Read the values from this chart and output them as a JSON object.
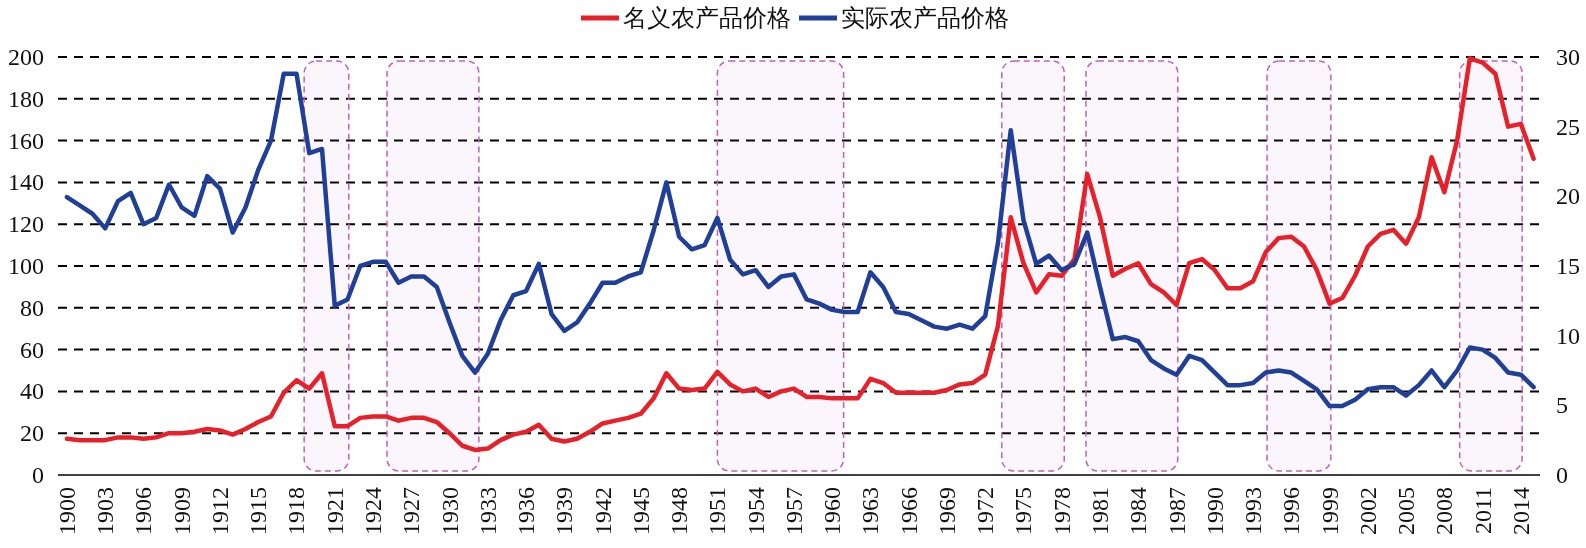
{
  "chart_data": {
    "type": "line",
    "legend": "top",
    "grid": "y",
    "x": [
      1900,
      1901,
      1902,
      1903,
      1904,
      1905,
      1906,
      1907,
      1908,
      1909,
      1910,
      1911,
      1912,
      1913,
      1914,
      1915,
      1916,
      1917,
      1918,
      1919,
      1920,
      1921,
      1922,
      1923,
      1924,
      1925,
      1926,
      1927,
      1928,
      1929,
      1930,
      1931,
      1932,
      1933,
      1934,
      1935,
      1936,
      1937,
      1938,
      1939,
      1940,
      1941,
      1942,
      1943,
      1944,
      1945,
      1946,
      1947,
      1948,
      1949,
      1950,
      1951,
      1952,
      1953,
      1954,
      1955,
      1956,
      1957,
      1958,
      1959,
      1960,
      1961,
      1962,
      1963,
      1964,
      1965,
      1966,
      1967,
      1968,
      1969,
      1970,
      1971,
      1972,
      1973,
      1974,
      1975,
      1976,
      1977,
      1978,
      1979,
      1980,
      1981,
      1982,
      1983,
      1984,
      1985,
      1986,
      1987,
      1988,
      1989,
      1990,
      1991,
      1992,
      1993,
      1994,
      1995,
      1996,
      1997,
      1998,
      1999,
      2000,
      2001,
      2002,
      2003,
      2004,
      2005,
      2006,
      2007,
      2008,
      2009,
      2010,
      2011,
      2012,
      2013,
      2014,
      2015
    ],
    "series": [
      {
        "name": "名义农产品价格",
        "color": "#e8202a",
        "axis": "y2",
        "values": [
          2.6,
          2.5,
          2.5,
          2.5,
          2.7,
          2.7,
          2.6,
          2.7,
          3.0,
          3.0,
          3.1,
          3.3,
          3.2,
          2.9,
          3.3,
          3.8,
          4.2,
          5.9,
          6.8,
          6.2,
          7.3,
          3.5,
          3.5,
          4.1,
          4.2,
          4.2,
          3.9,
          4.1,
          4.1,
          3.8,
          3.0,
          2.1,
          1.8,
          1.9,
          2.5,
          2.9,
          3.1,
          3.6,
          2.6,
          2.4,
          2.6,
          3.1,
          3.7,
          3.9,
          4.1,
          4.4,
          5.5,
          7.3,
          6.2,
          6.1,
          6.2,
          7.4,
          6.5,
          6.0,
          6.2,
          5.6,
          6.0,
          6.2,
          5.6,
          5.6,
          5.5,
          5.5,
          5.5,
          6.9,
          6.6,
          5.9,
          5.9,
          5.9,
          5.9,
          6.1,
          6.5,
          6.6,
          7.2,
          10.7,
          18.5,
          15.2,
          13.1,
          14.4,
          14.3,
          15.5,
          21.6,
          18.5,
          14.3,
          14.8,
          15.2,
          13.7,
          13.1,
          12.2,
          15.2,
          15.5,
          14.7,
          13.4,
          13.4,
          13.9,
          16.0,
          17.0,
          17.1,
          16.4,
          14.7,
          12.3,
          12.7,
          14.3,
          16.4,
          17.3,
          17.6,
          16.6,
          18.5,
          22.8,
          20.3,
          24.0,
          29.9,
          29.6,
          28.8,
          25.0,
          25.2,
          22.7
        ]
      },
      {
        "name": "实际农产品价格",
        "color": "#1f3f99",
        "values": [
          133,
          129,
          125,
          118,
          131,
          135,
          120,
          123,
          139,
          128,
          124,
          143,
          137,
          116,
          128,
          146,
          160,
          192,
          192,
          154,
          156,
          81,
          84,
          100,
          102,
          102,
          92,
          95,
          95,
          90,
          73,
          57,
          49,
          58,
          74,
          86,
          88,
          101,
          77,
          69,
          73,
          82,
          92,
          92,
          95,
          97,
          117,
          140,
          114,
          108,
          110,
          123,
          103,
          96,
          98,
          90,
          95,
          96,
          84,
          82,
          79,
          78,
          78,
          97,
          90,
          78,
          77,
          74,
          71,
          70,
          72,
          70,
          76,
          111,
          165,
          122,
          101,
          105,
          98,
          101,
          116,
          90,
          65,
          66,
          64,
          55,
          51,
          48,
          57,
          55,
          49,
          43,
          43,
          44,
          49,
          50,
          49,
          45,
          41,
          33,
          33,
          36,
          41,
          42,
          42,
          38,
          43,
          50,
          42,
          50,
          61,
          60,
          56,
          49,
          48,
          42
        ]
      }
    ],
    "xlim": [
      1899.3,
      2015.5
    ],
    "xticks": [
      1900,
      1903,
      1906,
      1909,
      1912,
      1915,
      1918,
      1921,
      1924,
      1927,
      1930,
      1933,
      1936,
      1939,
      1942,
      1945,
      1948,
      1951,
      1954,
      1957,
      1960,
      1963,
      1966,
      1969,
      1972,
      1975,
      1978,
      1981,
      1984,
      1987,
      1990,
      1993,
      1996,
      1999,
      2002,
      2005,
      2008,
      2011,
      2014
    ],
    "ylim": [
      0,
      200
    ],
    "yticks": [
      0,
      20,
      40,
      60,
      80,
      100,
      120,
      140,
      160,
      180,
      200
    ],
    "y2lim": [
      0,
      30
    ],
    "y2ticks": [
      0,
      5,
      10,
      15,
      20,
      25,
      30
    ],
    "bands": [
      {
        "axis": "x",
        "from": 1918.6,
        "to": 1922.1,
        "color": "#c060c0"
      },
      {
        "axis": "x",
        "from": 1925.1,
        "to": 1932.3,
        "color": "#c060c0"
      },
      {
        "axis": "x",
        "from": 1951.0,
        "to": 1960.9,
        "color": "#c060c0"
      },
      {
        "axis": "x",
        "from": 1973.3,
        "to": 1978.2,
        "color": "#c060c0"
      },
      {
        "axis": "x",
        "from": 1979.9,
        "to": 1987.1,
        "color": "#c060c0"
      },
      {
        "axis": "x",
        "from": 1994.1,
        "to": 1999.1,
        "color": "#c060c0"
      },
      {
        "axis": "x",
        "from": 2009.2,
        "to": 2014.1,
        "color": "#c060c0"
      }
    ]
  }
}
